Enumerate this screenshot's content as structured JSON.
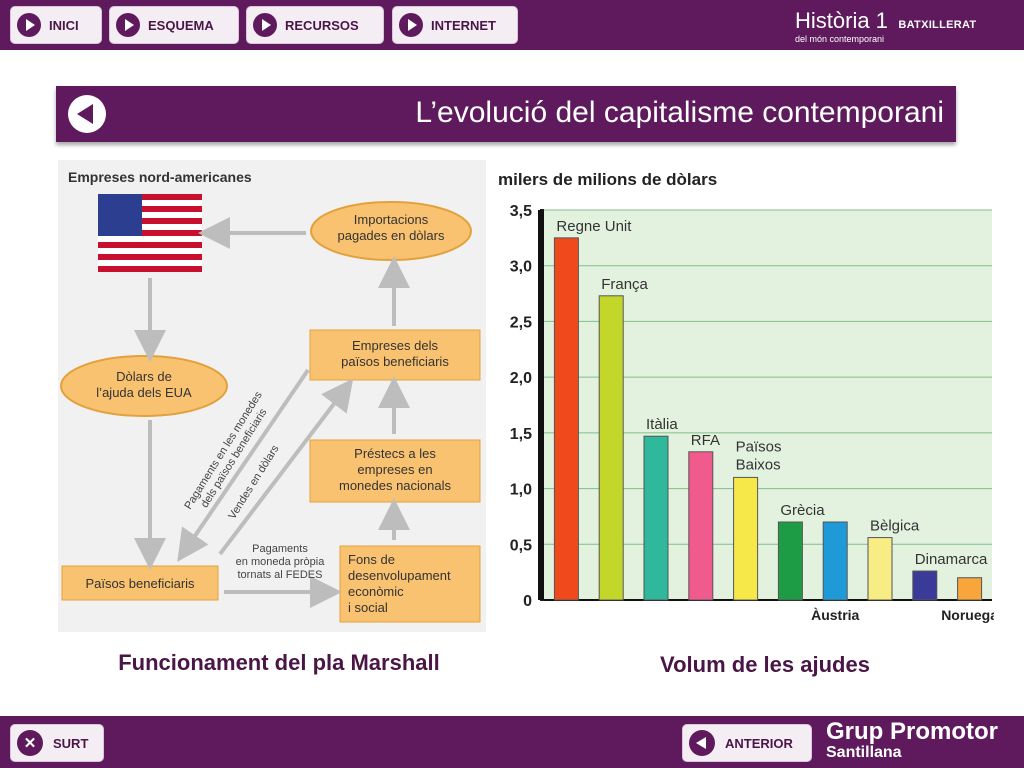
{
  "nav": {
    "items": [
      {
        "label": "INICI",
        "icon": "play-icon"
      },
      {
        "label": "ESQUEMA",
        "icon": "play-icon"
      },
      {
        "label": "RECURSOS",
        "icon": "play-icon"
      },
      {
        "label": "INTERNET",
        "icon": "play-icon"
      }
    ]
  },
  "brand": {
    "title": "Història 1",
    "level": "BATXILLERAT",
    "subtitle": "del món contemporani"
  },
  "page": {
    "title": "L’evolució del capitalisme contemporani"
  },
  "diagram": {
    "header": "Empreses nord-americanes",
    "nodes": {
      "importacions": [
        "Importacions",
        "pagades en dòlars"
      ],
      "dolars": [
        "Dòlars de",
        "l’ajuda dels EUA"
      ],
      "empreses": [
        "Empreses dels",
        "països beneficiaris"
      ],
      "prestecs": [
        "Préstecs a les",
        "empreses en",
        "monedes nacionals"
      ],
      "fons": [
        "Fons de",
        "desenvolupament",
        "econòmic",
        "i social"
      ],
      "paisos": "Països beneficiaris"
    },
    "labels": {
      "pagaments_monedes": [
        "Pagaments en les monedes",
        "dels països beneficiaris"
      ],
      "vendes": "Vendes en dòlars",
      "pagaments_fedes": [
        "Pagaments",
        "en moneda pròpia",
        "tornats al FEDES"
      ]
    }
  },
  "captions": {
    "left": "Funcionament del pla Marshall",
    "right": "Volum de les ajudes"
  },
  "chart_data": {
    "type": "bar",
    "title": "milers de milions de dòlars",
    "ylim": [
      0,
      3.5
    ],
    "ytick_labels": [
      "0",
      "0,5",
      "1,0",
      "1,5",
      "2,0",
      "2,5",
      "3,0",
      "3,5"
    ],
    "grid": true,
    "categories": [
      "Regne Unit",
      "França",
      "Itàlia",
      "RFA",
      "Països Baixos",
      "Grècia",
      "Àustria",
      "Bèlgica",
      "Dinamarca",
      "Noruega"
    ],
    "values": [
      3.25,
      2.73,
      1.47,
      1.33,
      1.1,
      0.7,
      0.7,
      0.56,
      0.26,
      0.2
    ],
    "colors": [
      "#f04a1c",
      "#c3d62a",
      "#2fb89b",
      "#f05a8c",
      "#f7e84a",
      "#1e9b45",
      "#1e9ad8",
      "#f8ec84",
      "#3a3a99",
      "#f8a63c"
    ],
    "label_position": [
      "above",
      "above",
      "above",
      "above",
      "above",
      "above",
      "below",
      "above",
      "above",
      "below"
    ]
  },
  "bottom": {
    "exit_label": "SURT",
    "prev_label": "ANTERIOR",
    "logo_line1": "Grup Promotor",
    "logo_line2": "Santillana"
  }
}
